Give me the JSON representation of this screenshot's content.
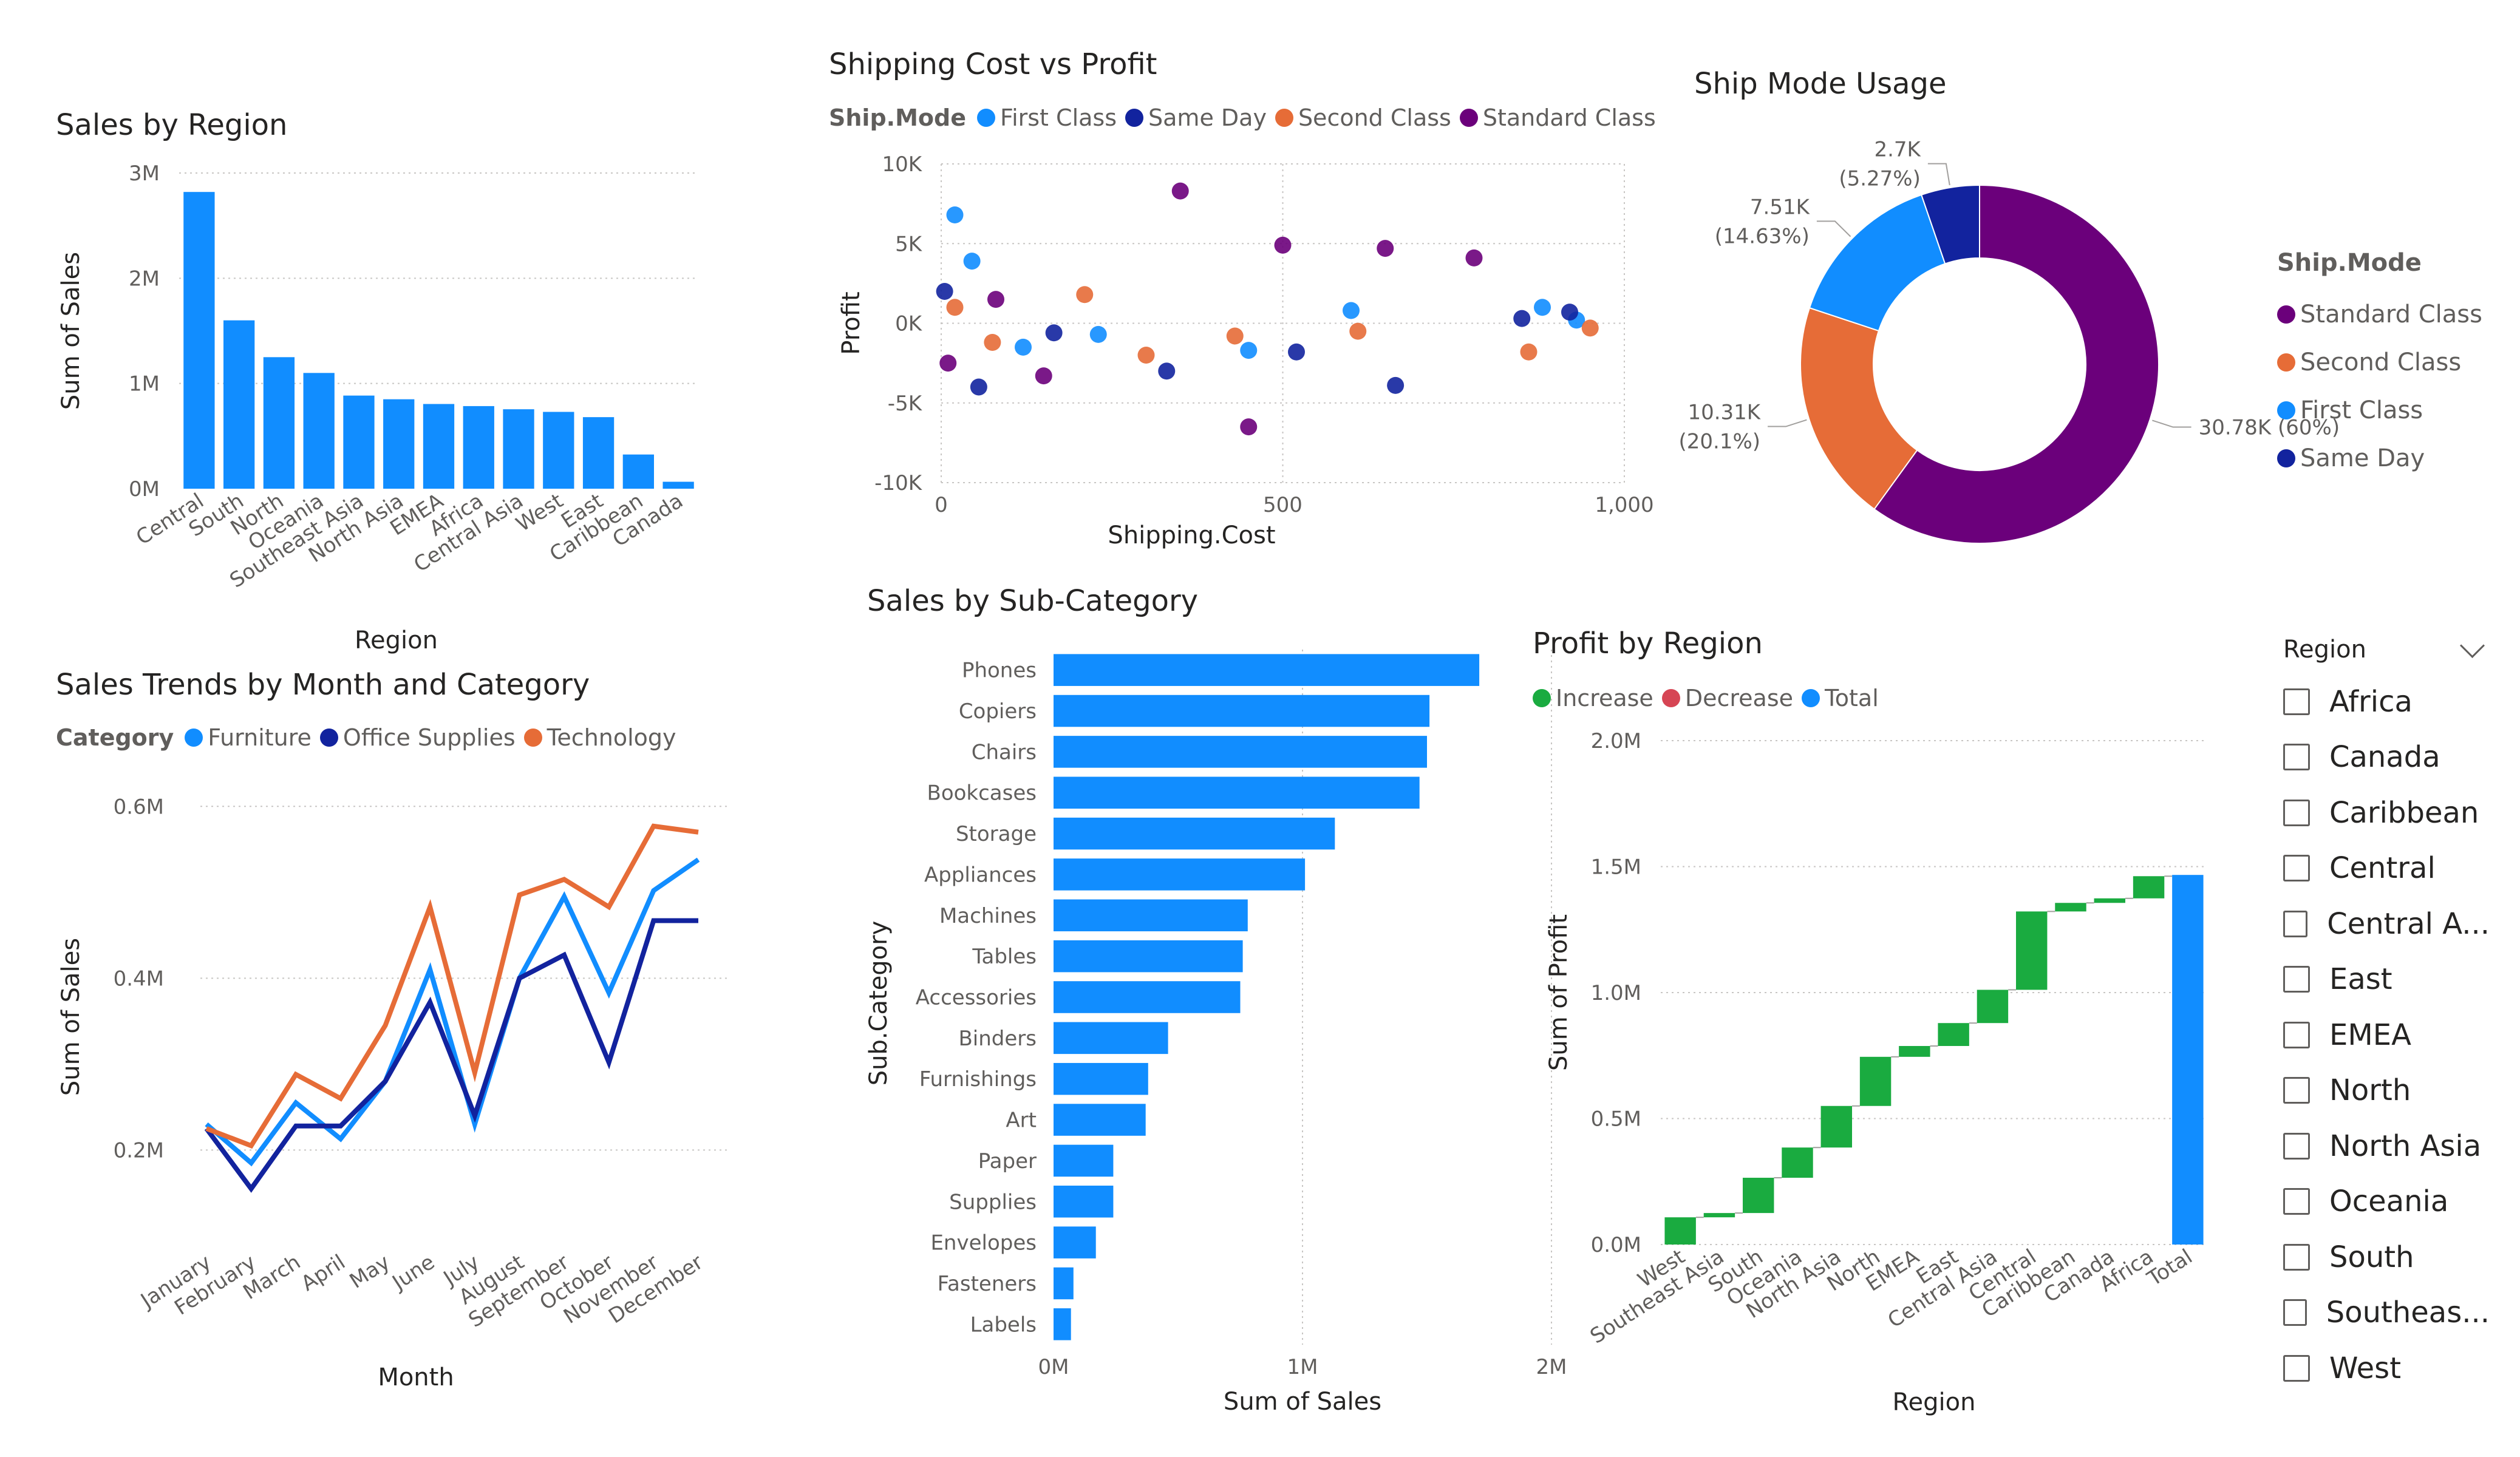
{
  "chart_data": [
    {
      "id": "sales_by_region",
      "type": "bar",
      "title": "Sales by Region",
      "xlabel": "Region",
      "ylabel": "Sum of Sales",
      "categories": [
        "Central",
        "South",
        "North",
        "Oceania",
        "Southeast Asia",
        "North Asia",
        "EMEA",
        "Africa",
        "Central Asia",
        "West",
        "East",
        "Caribbean",
        "Canada"
      ],
      "values": [
        2820000,
        1600000,
        1250000,
        1100000,
        885000,
        850000,
        805000,
        785000,
        755000,
        730000,
        680000,
        325000,
        66000
      ],
      "yticks": [
        "0M",
        "1M",
        "2M",
        "3M"
      ],
      "ylim": [
        0,
        3000000
      ],
      "color": "#118DFF",
      "grid": true
    },
    {
      "id": "shipping_cost_vs_profit",
      "type": "scatter",
      "title": "Shipping Cost vs Profit",
      "xlabel": "Shipping.Cost",
      "ylabel": "Profit",
      "legend_title": "Ship.Mode",
      "xticks": [
        "0",
        "500",
        "1,000"
      ],
      "yticks": [
        "10K",
        "5K",
        "0K",
        "-5K",
        "-10K"
      ],
      "xlim": [
        0,
        1000
      ],
      "ylim": [
        -10000,
        10000
      ],
      "series": [
        {
          "name": "First Class",
          "color": "#118DFF",
          "points": [
            [
              20,
              6800
            ],
            [
              45,
              3900
            ],
            [
              120,
              -1500
            ],
            [
              230,
              -700
            ],
            [
              450,
              -1700
            ],
            [
              600,
              800
            ],
            [
              880,
              1000
            ],
            [
              930,
              200
            ]
          ]
        },
        {
          "name": "Same Day",
          "color": "#12239E",
          "points": [
            [
              5,
              2000
            ],
            [
              55,
              -4000
            ],
            [
              165,
              -600
            ],
            [
              330,
              -3000
            ],
            [
              520,
              -1800
            ],
            [
              665,
              -3900
            ],
            [
              850,
              300
            ],
            [
              920,
              700
            ]
          ]
        },
        {
          "name": "Second Class",
          "color": "#E66C37",
          "points": [
            [
              20,
              1000
            ],
            [
              75,
              -1200
            ],
            [
              210,
              1800
            ],
            [
              300,
              -2000
            ],
            [
              430,
              -800
            ],
            [
              610,
              -500
            ],
            [
              860,
              -1800
            ],
            [
              950,
              -300
            ]
          ]
        },
        {
          "name": "Standard Class",
          "color": "#6B007B",
          "points": [
            [
              10,
              -2500
            ],
            [
              80,
              1500
            ],
            [
              150,
              -3300
            ],
            [
              350,
              8300
            ],
            [
              450,
              -6500
            ],
            [
              500,
              4900
            ],
            [
              650,
              4700
            ],
            [
              780,
              4100
            ]
          ]
        }
      ]
    },
    {
      "id": "ship_mode_usage",
      "type": "pie",
      "title": "Ship Mode Usage",
      "legend_title": "Ship.Mode",
      "slices": [
        {
          "name": "Standard Class",
          "value": 30780,
          "label": "30.78K (60%)",
          "color": "#6B007B"
        },
        {
          "name": "Second Class",
          "value": 10310,
          "label": "10.31K\n(20.1%)",
          "color": "#E66C37"
        },
        {
          "name": "First Class",
          "value": 7510,
          "label": "7.51K\n(14.63%)",
          "color": "#118DFF"
        },
        {
          "name": "Same Day",
          "value": 2700,
          "label": "2.7K\n(5.27%)",
          "color": "#12239E"
        }
      ]
    },
    {
      "id": "sales_by_subcategory",
      "type": "bar",
      "orientation": "horizontal",
      "title": "Sales by Sub-Category",
      "xlabel": "Sum of Sales",
      "ylabel": "Sub.Category",
      "categories": [
        "Phones",
        "Copiers",
        "Chairs",
        "Bookcases",
        "Storage",
        "Appliances",
        "Machines",
        "Tables",
        "Accessories",
        "Binders",
        "Furnishings",
        "Art",
        "Paper",
        "Supplies",
        "Envelopes",
        "Fasteners",
        "Labels"
      ],
      "values": [
        1710000,
        1510000,
        1500000,
        1470000,
        1130000,
        1010000,
        780000,
        760000,
        750000,
        460000,
        380000,
        370000,
        240000,
        240000,
        170000,
        80000,
        70000
      ],
      "xticks": [
        "0M",
        "1M",
        "2M"
      ],
      "xlim": [
        0,
        2000000
      ],
      "color": "#118DFF"
    },
    {
      "id": "sales_trends_by_month",
      "type": "line",
      "title": "Sales Trends by Month and Category",
      "xlabel": "Month",
      "ylabel": "Sum of Sales",
      "legend_title": "Category",
      "categories": [
        "January",
        "February",
        "March",
        "April",
        "May",
        "June",
        "July",
        "August",
        "September",
        "October",
        "November",
        "December"
      ],
      "yticks": [
        "0.2M",
        "0.4M",
        "0.6M"
      ],
      "ylim": [
        0.09,
        0.62
      ],
      "series": [
        {
          "name": "Furniture",
          "color": "#118DFF",
          "values": [
            0.23,
            0.185,
            0.255,
            0.213,
            0.28,
            0.41,
            0.23,
            0.4,
            0.495,
            0.383,
            0.502,
            0.538
          ]
        },
        {
          "name": "Office Supplies",
          "color": "#12239E",
          "values": [
            0.225,
            0.155,
            0.228,
            0.228,
            0.28,
            0.372,
            0.24,
            0.4,
            0.427,
            0.302,
            0.467,
            0.467
          ]
        },
        {
          "name": "Technology",
          "color": "#E66C37",
          "values": [
            0.225,
            0.205,
            0.288,
            0.26,
            0.345,
            0.483,
            0.29,
            0.497,
            0.515,
            0.483,
            0.577,
            0.57
          ]
        }
      ]
    },
    {
      "id": "profit_by_region",
      "type": "bar",
      "subtype": "waterfall",
      "title": "Profit by Region",
      "xlabel": "Region",
      "ylabel": "Sum of Profit",
      "legend": [
        {
          "name": "Increase",
          "color": "#1AAB40"
        },
        {
          "name": "Decrease",
          "color": "#D64554"
        },
        {
          "name": "Total",
          "color": "#118DFF"
        }
      ],
      "categories": [
        "West",
        "Southeast Asia",
        "South",
        "Oceania",
        "North Asia",
        "North",
        "EMEA",
        "East",
        "Central Asia",
        "Central",
        "Caribbean",
        "Canada",
        "Africa",
        "Total"
      ],
      "values": [
        108000,
        17000,
        140000,
        120000,
        165000,
        195000,
        43000,
        91000,
        132000,
        311000,
        34000,
        18000,
        88000,
        1467000
      ],
      "yticks": [
        "0.0M",
        "0.5M",
        "1.0M",
        "1.5M",
        "2.0M"
      ],
      "ylim": [
        0,
        2000000
      ]
    }
  ],
  "slicer": {
    "title": "Region",
    "items": [
      "Africa",
      "Canada",
      "Caribbean",
      "Central",
      "Central A...",
      "East",
      "EMEA",
      "North",
      "North Asia",
      "Oceania",
      "South",
      "Southeas...",
      "West"
    ]
  }
}
